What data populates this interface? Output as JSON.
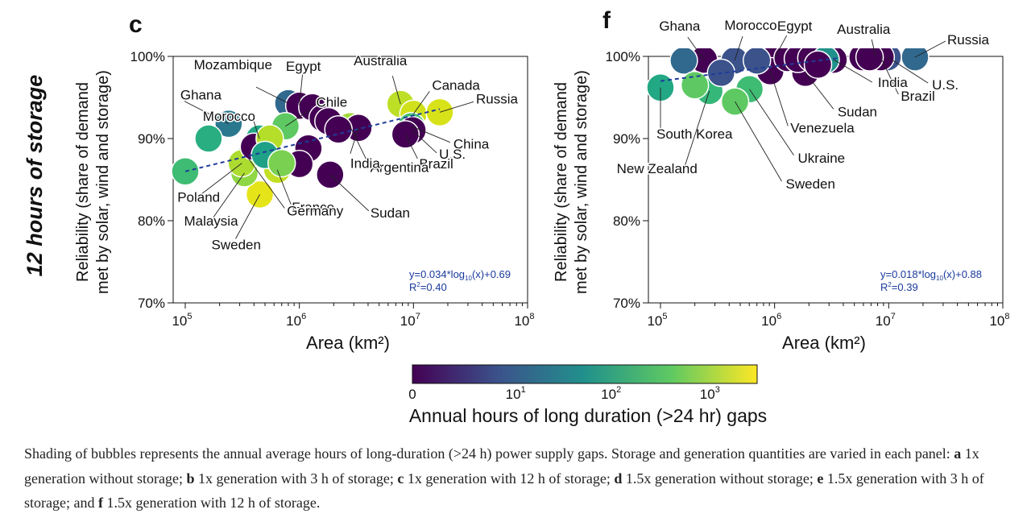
{
  "row_label": "12 hours of storage",
  "colors": {
    "trend": "#1f3d99",
    "eq_text": "#1a3a9c"
  },
  "colorbar": {
    "title": "Annual hours of long duration (>24 hr) gaps",
    "ticks": [
      {
        "label": "0",
        "value": 0
      },
      {
        "label": "10",
        "sup": "1",
        "value": 10
      },
      {
        "label": "10",
        "sup": "2",
        "value": 100
      },
      {
        "label": "10",
        "sup": "3",
        "value": 1000
      }
    ],
    "stops": [
      "#440154",
      "#3b528b",
      "#21918c",
      "#5ec962",
      "#fde725"
    ]
  },
  "chart_data": [
    {
      "panel": "c",
      "type": "scatter",
      "xlabel": "Area (km²)",
      "ylabel_lines": [
        "Reliability (share of demand",
        "met by solar, wind and storage)"
      ],
      "x_scale": "log",
      "xlim": [
        100000,
        100000000
      ],
      "ylim": [
        0.7,
        1.0
      ],
      "xticks": [
        {
          "base": "10",
          "exp": "5",
          "value": 100000
        },
        {
          "base": "10",
          "exp": "6",
          "value": 1000000
        },
        {
          "base": "10",
          "exp": "7",
          "value": 10000000
        },
        {
          "base": "10",
          "exp": "8",
          "value": 100000000
        }
      ],
      "yticks": [
        {
          "label": "70%",
          "value": 0.7
        },
        {
          "label": "80%",
          "value": 0.8
        },
        {
          "label": "90%",
          "value": 0.9
        },
        {
          "label": "100%",
          "value": 1.0
        }
      ],
      "equation": {
        "prefix": "y=0.034*log",
        "sub": "10",
        "suffix": "(x)+0.69"
      },
      "r2": {
        "prefix": "R",
        "sup": "2",
        "suffix": "=0.40"
      },
      "trend": {
        "slope": 0.034,
        "intercept": 0.69,
        "x_range": [
          100000,
          17000000
        ]
      },
      "points": [
        {
          "name": "Ghana",
          "x": 240000,
          "y": 0.918,
          "color": "#2a788e"
        },
        {
          "name": "Mozambique",
          "x": 800000,
          "y": 0.943,
          "color": "#31688e"
        },
        {
          "name": "Morocco",
          "x": 446000,
          "y": 0.9,
          "color": "#22a884"
        },
        {
          "name": "Egypt",
          "x": 1000000,
          "y": 0.94,
          "color": "#440154"
        },
        {
          "name": "Chile",
          "x": 756000,
          "y": 0.915,
          "color": "#5ec962"
        },
        {
          "name": "Australia",
          "x": 7700000,
          "y": 0.942,
          "color": "#bddf26"
        },
        {
          "name": "Canada",
          "x": 10000000,
          "y": 0.93,
          "color": "#d0e11c"
        },
        {
          "name": "Russia",
          "x": 17000000,
          "y": 0.932,
          "color": "#d8e219"
        },
        {
          "name": "China",
          "x": 9600000,
          "y": 0.915,
          "color": "#43bf71"
        },
        {
          "name": "U.S.",
          "x": 9800000,
          "y": 0.91,
          "color": "#440154"
        },
        {
          "name": "Brazil",
          "x": 8500000,
          "y": 0.905,
          "color": "#440154"
        },
        {
          "name": "Argentina",
          "x": 2780000,
          "y": 0.915,
          "color": "#a0da39"
        },
        {
          "name": "India",
          "x": 3290000,
          "y": 0.913,
          "color": "#440154"
        },
        {
          "name": "Sudan",
          "x": 1860000,
          "y": 0.856,
          "color": "#440154"
        },
        {
          "name": "France",
          "x": 640000,
          "y": 0.862,
          "color": "#c2df23"
        },
        {
          "name": "Germany",
          "x": 357000,
          "y": 0.876,
          "color": "#5ec962"
        },
        {
          "name": "Sweden",
          "x": 450000,
          "y": 0.832,
          "color": "#e5e419"
        },
        {
          "name": "Malaysia",
          "x": 330000,
          "y": 0.858,
          "color": "#8fd744"
        },
        {
          "name": "Poland",
          "x": 313000,
          "y": 0.87,
          "color": "#addc30"
        },
        {
          "name": "",
          "x": 100000,
          "y": 0.86,
          "color": "#3fbc73"
        },
        {
          "name": "",
          "x": 160000,
          "y": 0.9,
          "color": "#28ae80"
        },
        {
          "name": "",
          "x": 400000,
          "y": 0.89,
          "color": "#440154"
        },
        {
          "name": "",
          "x": 550000,
          "y": 0.9,
          "color": "#b5de2b"
        },
        {
          "name": "",
          "x": 1300000,
          "y": 0.938,
          "color": "#440154"
        },
        {
          "name": "",
          "x": 1600000,
          "y": 0.925,
          "color": "#440154"
        },
        {
          "name": "",
          "x": 1800000,
          "y": 0.921,
          "color": "#440154"
        },
        {
          "name": "",
          "x": 2200000,
          "y": 0.911,
          "color": "#440154"
        },
        {
          "name": "",
          "x": 1200000,
          "y": 0.888,
          "color": "#440154"
        },
        {
          "name": "",
          "x": 1000000,
          "y": 0.869,
          "color": "#440154"
        },
        {
          "name": "",
          "x": 500000,
          "y": 0.88,
          "color": "#1fa187"
        },
        {
          "name": "",
          "x": 700000,
          "y": 0.87,
          "color": "#7ad151"
        }
      ]
    },
    {
      "panel": "f",
      "type": "scatter",
      "xlabel": "Area (km²)",
      "ylabel_lines": [
        "Reliability (share of demand",
        "met by solar, wind and storage)"
      ],
      "x_scale": "log",
      "xlim": [
        100000,
        100000000
      ],
      "ylim": [
        0.7,
        1.0
      ],
      "xticks": [
        {
          "base": "10",
          "exp": "5",
          "value": 100000
        },
        {
          "base": "10",
          "exp": "6",
          "value": 1000000
        },
        {
          "base": "10",
          "exp": "7",
          "value": 10000000
        },
        {
          "base": "10",
          "exp": "8",
          "value": 100000000
        }
      ],
      "yticks": [
        {
          "label": "70%",
          "value": 0.7
        },
        {
          "label": "80%",
          "value": 0.8
        },
        {
          "label": "90%",
          "value": 0.9
        },
        {
          "label": "100%",
          "value": 1.0
        }
      ],
      "equation": {
        "prefix": "y=0.018*log",
        "sub": "10",
        "suffix": "(x)+0.88"
      },
      "r2": {
        "prefix": "R",
        "sup": "2",
        "suffix": "=0.39"
      },
      "trend": {
        "slope": 0.018,
        "intercept": 0.88,
        "x_range": [
          100000,
          3500000
        ]
      },
      "points": [
        {
          "name": "Ghana",
          "x": 240000,
          "y": 0.996,
          "color": "#440154"
        },
        {
          "name": "Morocco",
          "x": 446000,
          "y": 0.995,
          "color": "#3b528b"
        },
        {
          "name": "Egypt",
          "x": 1000000,
          "y": 0.998,
          "color": "#440154"
        },
        {
          "name": "Australia",
          "x": 7700000,
          "y": 0.999,
          "color": "#440154"
        },
        {
          "name": "Russia",
          "x": 17000000,
          "y": 0.999,
          "color": "#31688e"
        },
        {
          "name": "U.S.",
          "x": 9800000,
          "y": 0.999,
          "color": "#3b528b"
        },
        {
          "name": "Brazil",
          "x": 8500000,
          "y": 0.999,
          "color": "#440154"
        },
        {
          "name": "India",
          "x": 3290000,
          "y": 0.996,
          "color": "#440154"
        },
        {
          "name": "Sudan",
          "x": 1860000,
          "y": 0.98,
          "color": "#440154"
        },
        {
          "name": "Venezuela",
          "x": 916000,
          "y": 0.982,
          "color": "#440154"
        },
        {
          "name": "Ukraine",
          "x": 603000,
          "y": 0.96,
          "color": "#3fbc73"
        },
        {
          "name": "Sweden",
          "x": 450000,
          "y": 0.945,
          "color": "#5ec962"
        },
        {
          "name": "South Korea",
          "x": 100000,
          "y": 0.962,
          "color": "#22a884"
        },
        {
          "name": "New Zealand",
          "x": 268000,
          "y": 0.958,
          "color": "#35b779"
        },
        {
          "name": "",
          "x": 160000,
          "y": 0.995,
          "color": "#31688e"
        },
        {
          "name": "",
          "x": 340000,
          "y": 0.98,
          "color": "#3b528b"
        },
        {
          "name": "",
          "x": 200000,
          "y": 0.965,
          "color": "#5ec962"
        },
        {
          "name": "",
          "x": 700000,
          "y": 0.995,
          "color": "#3b528b"
        },
        {
          "name": "",
          "x": 1300000,
          "y": 0.998,
          "color": "#440154"
        },
        {
          "name": "",
          "x": 1600000,
          "y": 0.997,
          "color": "#440154"
        },
        {
          "name": "",
          "x": 2100000,
          "y": 0.998,
          "color": "#440154"
        },
        {
          "name": "",
          "x": 2800000,
          "y": 0.996,
          "color": "#21918c"
        },
        {
          "name": "",
          "x": 2400000,
          "y": 0.99,
          "color": "#440154"
        },
        {
          "name": "",
          "x": 5900000,
          "y": 0.999,
          "color": "#440154"
        },
        {
          "name": "",
          "x": 6800000,
          "y": 0.999,
          "color": "#440154"
        }
      ]
    }
  ],
  "caption": {
    "intro": "Shading of bubbles represents the annual average hours of long-duration (>24 h) power supply gaps. Storage and generation quantities are varied in each panel: ",
    "items": [
      {
        "letter": "a",
        "text": " 1x generation without storage; "
      },
      {
        "letter": "b",
        "text": " 1x generation with 3 h of storage; "
      },
      {
        "letter": "c",
        "text": " 1x generation with 12 h of storage; "
      },
      {
        "letter": "d",
        "text": " 1.5x generation without storage; "
      },
      {
        "letter": "e",
        "text": " 1.5x generation with 3 h of storage; and "
      },
      {
        "letter": "f",
        "text": " 1.5x generation with 12 h of storage."
      }
    ]
  }
}
